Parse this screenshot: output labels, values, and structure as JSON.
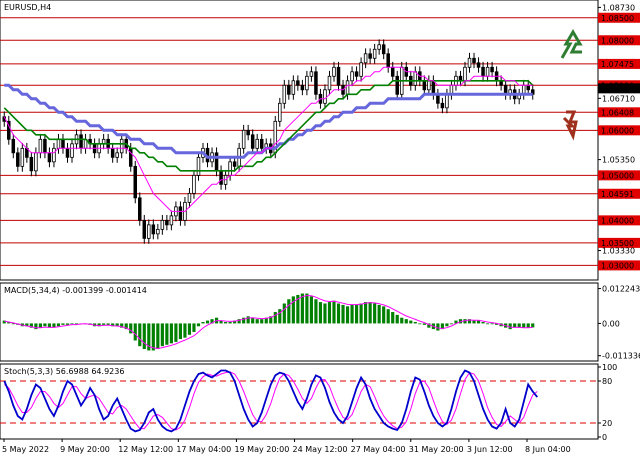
{
  "chart_data": [
    {
      "type": "candlestick",
      "title": "EURUSD,H4",
      "price_levels": [
        1.085,
        1.08,
        1.07475,
        1.07,
        1.064,
        1.06,
        1.05,
        1.04591,
        1.04,
        1.035,
        1.03
      ],
      "level_labels": [
        "1.08500",
        "1.08000",
        "1.07475",
        "1.07000",
        "1.06408",
        "1.06000",
        "1.05000",
        "1.04591",
        "1.04000",
        "1.03500",
        "1.03000"
      ],
      "axis_ticks": [
        "1.08730",
        "1.06710",
        "1.05350",
        "1.03330"
      ],
      "axis_tick_values": [
        1.0873,
        1.0671,
        1.0535,
        1.0333
      ],
      "current_price": "1.06932",
      "current_price_value": 1.06932,
      "ylim": [
        1.0272,
        1.0885
      ],
      "close": [
        1.062,
        1.058,
        1.055,
        1.052,
        1.056,
        1.054,
        1.051,
        1.055,
        1.058,
        1.055,
        1.053,
        1.056,
        1.058,
        1.056,
        1.054,
        1.057,
        1.059,
        1.056,
        1.058,
        1.057,
        1.055,
        1.057,
        1.058,
        1.056,
        1.054,
        1.055,
        1.058,
        1.056,
        1.052,
        1.045,
        1.04,
        1.036,
        1.039,
        1.037,
        1.038,
        1.04,
        1.039,
        1.041,
        1.043,
        1.04,
        1.044,
        1.046,
        1.05,
        1.054,
        1.056,
        1.053,
        1.055,
        1.051,
        1.048,
        1.05,
        1.053,
        1.052,
        1.056,
        1.06,
        1.059,
        1.056,
        1.058,
        1.056,
        1.057,
        1.055,
        1.062,
        1.066,
        1.07,
        1.068,
        1.071,
        1.07,
        1.069,
        1.072,
        1.073,
        1.068,
        1.066,
        1.069,
        1.072,
        1.074,
        1.07,
        1.068,
        1.071,
        1.073,
        1.072,
        1.075,
        1.077,
        1.076,
        1.078,
        1.079,
        1.077,
        1.074,
        1.072,
        1.068,
        1.074,
        1.072,
        1.07,
        1.073,
        1.071,
        1.069,
        1.071,
        1.068,
        1.066,
        1.065,
        1.068,
        1.07,
        1.072,
        1.071,
        1.074,
        1.076,
        1.075,
        1.074,
        1.072,
        1.074,
        1.073,
        1.071,
        1.07,
        1.068,
        1.069,
        1.067,
        1.068,
        1.07,
        1.069,
        1.068
      ],
      "sma_fast": [
        1.063,
        1.061,
        1.059,
        1.058,
        1.057,
        1.056,
        1.055,
        1.055,
        1.055,
        1.055,
        1.055,
        1.055,
        1.056,
        1.056,
        1.056,
        1.056,
        1.056,
        1.056,
        1.056,
        1.056,
        1.056,
        1.056,
        1.056,
        1.056,
        1.056,
        1.056,
        1.056,
        1.056,
        1.055,
        1.054,
        1.052,
        1.05,
        1.048,
        1.046,
        1.045,
        1.044,
        1.043,
        1.042,
        1.042,
        1.042,
        1.042,
        1.043,
        1.044,
        1.045,
        1.046,
        1.047,
        1.048,
        1.048,
        1.049,
        1.049,
        1.05,
        1.05,
        1.051,
        1.052,
        1.053,
        1.054,
        1.055,
        1.055,
        1.056,
        1.056,
        1.057,
        1.058,
        1.06,
        1.061,
        1.062,
        1.063,
        1.064,
        1.065,
        1.066,
        1.066,
        1.067,
        1.067,
        1.068,
        1.069,
        1.069,
        1.069,
        1.07,
        1.07,
        1.071,
        1.071,
        1.072,
        1.072,
        1.073,
        1.073,
        1.074,
        1.074,
        1.074,
        1.074,
        1.074,
        1.073,
        1.073,
        1.073,
        1.072,
        1.072,
        1.071,
        1.071,
        1.07,
        1.07,
        1.07,
        1.07,
        1.07,
        1.07,
        1.071,
        1.071,
        1.072,
        1.072,
        1.072,
        1.072,
        1.072,
        1.072,
        1.072,
        1.071,
        1.071,
        1.071,
        1.07,
        1.07,
        1.07,
        1.07
      ],
      "sma_mid": [
        1.065,
        1.064,
        1.063,
        1.062,
        1.061,
        1.06,
        1.06,
        1.059,
        1.059,
        1.059,
        1.058,
        1.058,
        1.058,
        1.058,
        1.058,
        1.058,
        1.058,
        1.058,
        1.058,
        1.057,
        1.057,
        1.057,
        1.057,
        1.057,
        1.057,
        1.057,
        1.057,
        1.057,
        1.056,
        1.056,
        1.055,
        1.055,
        1.054,
        1.054,
        1.053,
        1.053,
        1.052,
        1.052,
        1.052,
        1.051,
        1.051,
        1.051,
        1.051,
        1.051,
        1.051,
        1.051,
        1.051,
        1.051,
        1.051,
        1.051,
        1.051,
        1.051,
        1.052,
        1.052,
        1.052,
        1.052,
        1.053,
        1.053,
        1.054,
        1.054,
        1.055,
        1.056,
        1.057,
        1.058,
        1.059,
        1.06,
        1.061,
        1.062,
        1.063,
        1.064,
        1.064,
        1.065,
        1.066,
        1.066,
        1.067,
        1.067,
        1.068,
        1.068,
        1.068,
        1.069,
        1.069,
        1.069,
        1.07,
        1.07,
        1.07,
        1.07,
        1.071,
        1.071,
        1.071,
        1.071,
        1.071,
        1.071,
        1.071,
        1.071,
        1.071,
        1.071,
        1.071,
        1.071,
        1.071,
        1.071,
        1.071,
        1.071,
        1.071,
        1.071,
        1.071,
        1.071,
        1.071,
        1.071,
        1.071,
        1.071,
        1.071,
        1.071,
        1.071,
        1.071,
        1.071,
        1.071,
        1.071,
        1.07
      ],
      "sma_slow": [
        1.07,
        1.07,
        1.069,
        1.069,
        1.068,
        1.068,
        1.067,
        1.067,
        1.066,
        1.066,
        1.065,
        1.065,
        1.064,
        1.064,
        1.063,
        1.063,
        1.062,
        1.062,
        1.062,
        1.061,
        1.061,
        1.061,
        1.06,
        1.06,
        1.06,
        1.059,
        1.059,
        1.059,
        1.058,
        1.058,
        1.058,
        1.057,
        1.057,
        1.057,
        1.056,
        1.056,
        1.056,
        1.056,
        1.055,
        1.055,
        1.055,
        1.055,
        1.055,
        1.055,
        1.055,
        1.054,
        1.054,
        1.054,
        1.054,
        1.054,
        1.054,
        1.054,
        1.054,
        1.054,
        1.055,
        1.055,
        1.055,
        1.055,
        1.056,
        1.056,
        1.056,
        1.057,
        1.057,
        1.058,
        1.058,
        1.059,
        1.059,
        1.06,
        1.06,
        1.061,
        1.061,
        1.062,
        1.062,
        1.063,
        1.063,
        1.064,
        1.064,
        1.064,
        1.065,
        1.065,
        1.065,
        1.066,
        1.066,
        1.066,
        1.066,
        1.067,
        1.067,
        1.067,
        1.067,
        1.067,
        1.067,
        1.067,
        1.067,
        1.068,
        1.068,
        1.068,
        1.068,
        1.068,
        1.068,
        1.068,
        1.068,
        1.068,
        1.068,
        1.068,
        1.068,
        1.068,
        1.068,
        1.068,
        1.068,
        1.068,
        1.068,
        1.068,
        1.068,
        1.068,
        1.068,
        1.068,
        1.068,
        1.068
      ],
      "up_color": "#000000",
      "down_color": "#000000",
      "level_color": "#c00000",
      "label_bg_color": "#e00000",
      "sma_fast_color": "#ff00ff",
      "sma_mid_color": "#008000",
      "sma_slow_color": "#6666dd",
      "arrow_up_color": "#2e7d32",
      "arrow_down_color": "#a0301e"
    },
    {
      "type": "bar",
      "title": "MACD(5,34,4) -0.001399 -0.001414",
      "axis_ticks": [
        "0.012243",
        "0.00",
        "-0.011336"
      ],
      "axis_tick_values": [
        0.012243,
        0.0,
        -0.011336
      ],
      "ylim": [
        -0.0125,
        0.0135
      ],
      "values": [
        0.001,
        0.0005,
        0.0,
        -0.0005,
        -0.001,
        -0.001,
        -0.0015,
        -0.002,
        -0.0015,
        -0.001,
        -0.0015,
        -0.0015,
        -0.001,
        -0.0005,
        -0.0005,
        0.0,
        -0.0005,
        0.0,
        0.0,
        -0.0005,
        -0.001,
        -0.001,
        -0.0005,
        -0.0005,
        -0.001,
        -0.001,
        -0.0015,
        -0.002,
        -0.0035,
        -0.006,
        -0.008,
        -0.009,
        -0.0095,
        -0.0095,
        -0.009,
        -0.008,
        -0.0075,
        -0.007,
        -0.0065,
        -0.0055,
        -0.005,
        -0.004,
        -0.003,
        -0.001,
        0.0005,
        0.001,
        0.0015,
        0.002,
        0.001,
        0.0005,
        0.0005,
        0.001,
        0.0015,
        0.002,
        0.0025,
        0.002,
        0.0015,
        0.0015,
        0.002,
        0.0025,
        0.004,
        0.005,
        0.007,
        0.0085,
        0.0095,
        0.01,
        0.0105,
        0.0105,
        0.0095,
        0.0085,
        0.0075,
        0.007,
        0.0075,
        0.008,
        0.007,
        0.0065,
        0.006,
        0.0065,
        0.0065,
        0.007,
        0.0075,
        0.0075,
        0.007,
        0.0065,
        0.006,
        0.005,
        0.004,
        0.003,
        0.002,
        0.0015,
        0.001,
        0.0005,
        0.0,
        -0.0005,
        -0.0015,
        -0.002,
        -0.0025,
        -0.002,
        -0.001,
        0.0,
        0.001,
        0.0015,
        0.0015,
        0.0015,
        0.001,
        0.001,
        0.0005,
        0.0,
        0.0,
        -0.0005,
        -0.001,
        -0.0015,
        -0.002,
        -0.0015,
        -0.0015,
        -0.0015,
        -0.0015,
        -0.0014
      ],
      "signal": [
        0.0008,
        0.0005,
        0.0002,
        -0.0002,
        -0.0006,
        -0.0009,
        -0.0012,
        -0.0015,
        -0.0015,
        -0.0013,
        -0.0014,
        -0.0014,
        -0.0012,
        -0.0009,
        -0.0007,
        -0.0004,
        -0.0004,
        -0.0002,
        -0.0001,
        -0.0003,
        -0.0006,
        -0.0008,
        -0.0007,
        -0.0006,
        -0.0008,
        -0.0009,
        -0.0012,
        -0.0016,
        -0.0024,
        -0.0038,
        -0.0055,
        -0.0069,
        -0.008,
        -0.0086,
        -0.0088,
        -0.0085,
        -0.0081,
        -0.0077,
        -0.0072,
        -0.0065,
        -0.0059,
        -0.0051,
        -0.0043,
        -0.003,
        -0.0016,
        -0.0006,
        0.0002,
        0.001,
        0.001,
        0.0008,
        0.0007,
        0.0008,
        0.0011,
        0.0015,
        0.0019,
        0.002,
        0.0018,
        0.0017,
        0.0018,
        0.0021,
        0.0029,
        0.0037,
        0.005,
        0.0064,
        0.0076,
        0.0086,
        0.0094,
        0.0098,
        0.0097,
        0.0092,
        0.0085,
        0.0079,
        0.0077,
        0.0078,
        0.0075,
        0.0071,
        0.0067,
        0.0066,
        0.0066,
        0.0068,
        0.0071,
        0.0073,
        0.0072,
        0.0069,
        0.0065,
        0.0059,
        0.0051,
        0.0043,
        0.0034,
        0.0026,
        0.002,
        0.0014,
        0.0008,
        0.0003,
        -0.0004,
        -0.001,
        -0.0016,
        -0.0018,
        -0.0015,
        -0.0009,
        -0.0001,
        0.0006,
        0.001,
        0.0012,
        0.0011,
        0.0011,
        0.0008,
        0.0005,
        0.0003,
        0.0,
        -0.0004,
        -0.0008,
        -0.0013,
        -0.0014,
        -0.0014,
        -0.0015,
        -0.0015,
        -0.0014
      ],
      "bar_color": "#008000",
      "signal_color": "#ff00ff"
    },
    {
      "type": "line",
      "title": "Stoch(5,3,3) 56.6988 64.9236",
      "axis_ticks": [
        "100",
        "80",
        "20",
        "0"
      ],
      "axis_tick_values": [
        100,
        80,
        20,
        0
      ],
      "ylim": [
        0,
        100
      ],
      "levels": [
        80,
        20
      ],
      "main": [
        80,
        65,
        45,
        30,
        25,
        40,
        60,
        75,
        70,
        55,
        40,
        30,
        45,
        65,
        80,
        75,
        60,
        45,
        55,
        70,
        60,
        40,
        25,
        30,
        45,
        55,
        40,
        25,
        12,
        8,
        10,
        20,
        35,
        40,
        25,
        15,
        10,
        8,
        12,
        25,
        45,
        65,
        80,
        90,
        92,
        88,
        85,
        90,
        95,
        95,
        92,
        80,
        60,
        40,
        25,
        15,
        20,
        35,
        55,
        75,
        88,
        92,
        90,
        80,
        65,
        50,
        40,
        55,
        75,
        88,
        85,
        70,
        50,
        35,
        25,
        20,
        30,
        50,
        70,
        85,
        75,
        55,
        40,
        30,
        20,
        15,
        12,
        10,
        20,
        40,
        65,
        85,
        82,
        65,
        45,
        30,
        20,
        15,
        20,
        40,
        65,
        85,
        95,
        92,
        80,
        60,
        40,
        25,
        15,
        12,
        20,
        40,
        20,
        15,
        25,
        50,
        75,
        65,
        57
      ],
      "signal": [
        75,
        70,
        58,
        45,
        35,
        35,
        42,
        55,
        65,
        65,
        58,
        48,
        42,
        48,
        60,
        72,
        72,
        62,
        55,
        58,
        60,
        55,
        45,
        35,
        33,
        42,
        45,
        40,
        30,
        20,
        12,
        12,
        20,
        30,
        32,
        28,
        20,
        12,
        10,
        14,
        24,
        42,
        62,
        78,
        86,
        90,
        88,
        87,
        90,
        92,
        93,
        90,
        80,
        65,
        48,
        32,
        22,
        22,
        32,
        48,
        68,
        84,
        90,
        88,
        80,
        68,
        55,
        48,
        55,
        70,
        82,
        82,
        72,
        55,
        40,
        28,
        25,
        32,
        48,
        65,
        75,
        72,
        58,
        42,
        30,
        22,
        16,
        12,
        14,
        22,
        40,
        62,
        78,
        80,
        70,
        52,
        35,
        22,
        18,
        24,
        40,
        62,
        82,
        92,
        90,
        80,
        62,
        42,
        28,
        18,
        15,
        22,
        30,
        25,
        20,
        28,
        45,
        60,
        65
      ],
      "main_color": "#0000cc",
      "signal_color": "#ff00ff",
      "level_color": "#e00000",
      "dates": [
        "5 May 2022",
        "9 May 20:00",
        "12 May 12:00",
        "17 May 04:00",
        "19 May 20:00",
        "24 May 12:00",
        "27 May 04:00",
        "31 May 20:00",
        "3 Jun 12:00",
        "8 Jun 04:00"
      ]
    }
  ]
}
